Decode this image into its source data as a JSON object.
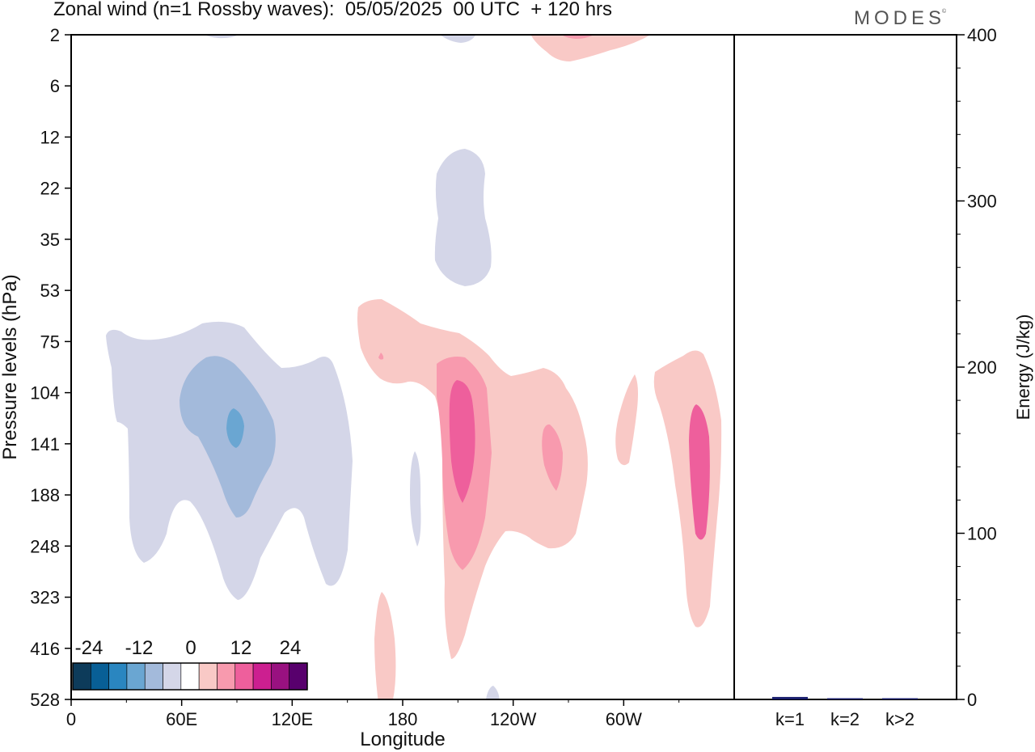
{
  "title": "Zonal wind (n=1 Rossby waves):  05/05/2025  00 UTC  + 120 hrs",
  "logo": "MODES",
  "logo_mark": "©",
  "colors": {
    "contour_scale": [
      "#0d3b5a",
      "#085f96",
      "#2a86c0",
      "#6aa6d2",
      "#a3badb",
      "#d4d6e8",
      "#ffffff",
      "#f9c9c6",
      "#f89aae",
      "#ee5f9c",
      "#cc1f90",
      "#991180",
      "#58006d"
    ],
    "bar": "#1a1f6e",
    "axis": "#000000"
  },
  "chart_data": [
    {
      "type": "heatmap",
      "title": "Zonal wind (n=1 Rossby waves):  05/05/2025  00 UTC  + 120 hrs",
      "xlabel": "Longitude",
      "ylabel": "Pressure levels (hPa)",
      "x_ticks": [
        "0",
        "60E",
        "120E",
        "180",
        "120W",
        "60W"
      ],
      "x_tick_degrees": [
        0,
        60,
        120,
        180,
        240,
        300
      ],
      "xlim": [
        0,
        360
      ],
      "y_ticks": [
        "2",
        "6",
        "12",
        "22",
        "35",
        "53",
        "75",
        "104",
        "141",
        "188",
        "248",
        "323",
        "416",
        "528"
      ],
      "colorbar": {
        "labels": [
          "-24",
          "-12",
          "0",
          "12",
          "24"
        ],
        "label_values": [
          -24,
          -12,
          0,
          12,
          24
        ]
      },
      "regions": [
        {
          "sign": "negative",
          "level": -3,
          "center_lon": 72,
          "center_level": "104–188",
          "desc_levels": "75–323"
        },
        {
          "sign": "negative",
          "level": -6,
          "center_lon": 85,
          "center_level": "104–188"
        },
        {
          "sign": "negative",
          "level": -9,
          "center_lon": 90,
          "center_level": "141"
        },
        {
          "sign": "negative",
          "level": -3,
          "center_lon": 212,
          "center_level": "22–35"
        },
        {
          "sign": "positive",
          "level": 3,
          "center_lon": 210,
          "center_level": "104–248"
        },
        {
          "sign": "positive",
          "level": 6,
          "center_lon": 208,
          "center_level": "141"
        },
        {
          "sign": "positive",
          "level": 9,
          "center_lon": 211,
          "center_level": "141"
        },
        {
          "sign": "positive",
          "level": 3,
          "center_lon": 338,
          "center_level": "141–248"
        },
        {
          "sign": "positive",
          "level": 6,
          "center_lon": 338,
          "center_level": "141"
        }
      ]
    },
    {
      "type": "bar",
      "ylabel": "Energy (J/kg)",
      "categories": [
        "k=1",
        "k=2",
        "k>2"
      ],
      "values": [
        1.5,
        0.3,
        0.4
      ],
      "ylim": [
        0,
        400
      ],
      "y_ticks": [
        "0",
        "100",
        "200",
        "300",
        "400"
      ]
    }
  ]
}
